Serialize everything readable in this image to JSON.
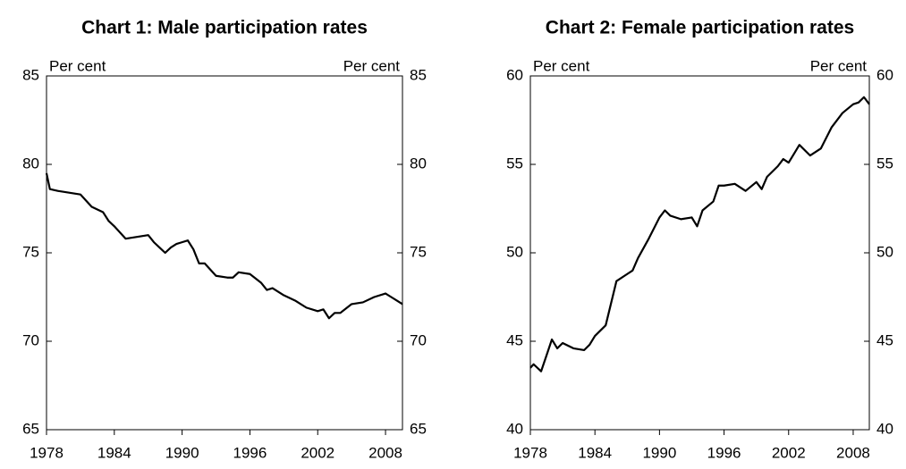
{
  "chart_data": [
    {
      "type": "line",
      "title": "Chart 1: Male participation rates",
      "ylabel": "Per cent",
      "y2label": "Per cent",
      "x": [
        1978,
        1978.3,
        1979,
        1980,
        1981,
        1982,
        1983,
        1983.5,
        1984,
        1985,
        1986,
        1987,
        1987.5,
        1988,
        1988.5,
        1989,
        1989.5,
        1990,
        1990.5,
        1991,
        1991.5,
        1992,
        1993,
        1994,
        1994.5,
        1995,
        1996,
        1997,
        1997.5,
        1998,
        1999,
        2000,
        2000.5,
        2001,
        2002,
        2002.5,
        2003,
        2003.5,
        2004,
        2005,
        2006,
        2007,
        2008,
        2008.5,
        2009,
        2009.5
      ],
      "series": [
        {
          "color": "#000000",
          "values": [
            79.5,
            78.6,
            78.5,
            78.4,
            78.3,
            77.6,
            77.3,
            76.8,
            76.5,
            75.8,
            75.9,
            76.0,
            75.6,
            75.3,
            75.0,
            75.3,
            75.5,
            75.6,
            75.7,
            75.2,
            74.4,
            74.4,
            73.7,
            73.6,
            73.6,
            73.9,
            73.8,
            73.3,
            72.9,
            73.0,
            72.6,
            72.3,
            72.1,
            71.9,
            71.7,
            71.8,
            71.3,
            71.6,
            71.6,
            72.1,
            72.2,
            72.5,
            72.7,
            72.5,
            72.3,
            72.1
          ]
        }
      ],
      "xlim": [
        1978,
        2009.5
      ],
      "xticks": [
        1978,
        1984,
        1990,
        1996,
        2002,
        2008
      ],
      "ylim": [
        65,
        85
      ],
      "yticks": [
        65,
        70,
        75,
        80,
        85
      ],
      "y2lim": [
        65,
        85
      ],
      "y2ticks": [
        65,
        70,
        75,
        80,
        85
      ]
    },
    {
      "type": "line",
      "title": "Chart 2: Female participation rates",
      "ylabel": "Per cent",
      "y2label": "Per cent",
      "x": [
        1978,
        1978.3,
        1979,
        1979.5,
        1980,
        1980.5,
        1981,
        1982,
        1983,
        1983.5,
        1984,
        1985,
        1986,
        1987,
        1987.5,
        1988,
        1989,
        1990,
        1990.5,
        1991,
        1992,
        1993,
        1993.5,
        1994,
        1995,
        1995.5,
        1996,
        1997,
        1998,
        1999,
        1999.5,
        2000,
        2001,
        2001.5,
        2002,
        2003,
        2004,
        2005,
        2006,
        2007,
        2008,
        2008.5,
        2009,
        2009.5
      ],
      "series": [
        {
          "color": "#000000",
          "values": [
            43.5,
            43.7,
            43.3,
            44.2,
            45.1,
            44.6,
            44.9,
            44.6,
            44.5,
            44.8,
            45.3,
            45.9,
            48.4,
            48.8,
            49.0,
            49.7,
            50.8,
            52.0,
            52.4,
            52.1,
            51.9,
            52.0,
            51.5,
            52.4,
            52.9,
            53.8,
            53.8,
            53.9,
            53.5,
            54.0,
            53.6,
            54.3,
            54.9,
            55.3,
            55.1,
            56.1,
            55.5,
            55.9,
            57.1,
            57.9,
            58.4,
            58.5,
            58.8,
            58.4
          ]
        }
      ],
      "xlim": [
        1978,
        2009.5
      ],
      "xticks": [
        1978,
        1984,
        1990,
        1996,
        2002,
        2008
      ],
      "ylim": [
        40,
        60
      ],
      "yticks": [
        40,
        45,
        50,
        55,
        60
      ],
      "y2lim": [
        40,
        60
      ],
      "y2ticks": [
        40,
        45,
        50,
        55,
        60
      ]
    }
  ]
}
